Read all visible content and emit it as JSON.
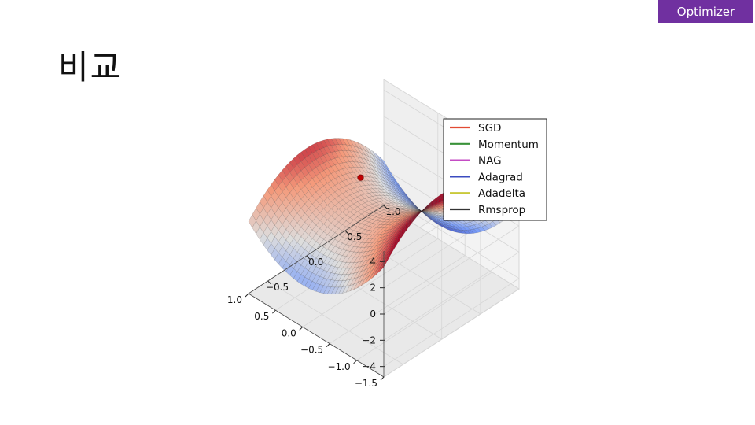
{
  "header": {
    "section_badge": "Optimizer",
    "slide_title": "비교"
  },
  "chart_data": {
    "type": "surface",
    "surface": "saddle",
    "axes": {
      "x": {
        "ticks": [
          -1.5,
          -1.0,
          -0.5,
          0.0,
          0.5,
          1.0
        ],
        "tick_labels": [
          "−1.5",
          "−1.0",
          "−0.5",
          "0.0",
          "0.5",
          "1.0"
        ]
      },
      "y": {
        "ticks": [
          -0.5,
          0.0,
          0.5,
          1.0
        ],
        "tick_labels": [
          "−0.5",
          "0.0",
          "0.5",
          "1.0"
        ]
      },
      "z": {
        "ticks": [
          -4,
          -2,
          0,
          2,
          4
        ],
        "tick_labels": [
          "−4",
          "−2",
          "0",
          "2",
          "4"
        ]
      }
    },
    "grid": true,
    "colormap": "coolwarm",
    "marker": {
      "x": 0.0,
      "y": 0.0,
      "color": "#c00000"
    },
    "legend": {
      "placement": "top-right",
      "entries": [
        {
          "name": "SGD",
          "color": "#e24a33"
        },
        {
          "name": "Momentum",
          "color": "#3a923a"
        },
        {
          "name": "NAG",
          "color": "#c44cc4"
        },
        {
          "name": "Adagrad",
          "color": "#3b4cc0"
        },
        {
          "name": "Adadelta",
          "color": "#c9c93a"
        },
        {
          "name": "Rmsprop",
          "color": "#333333"
        }
      ]
    }
  }
}
